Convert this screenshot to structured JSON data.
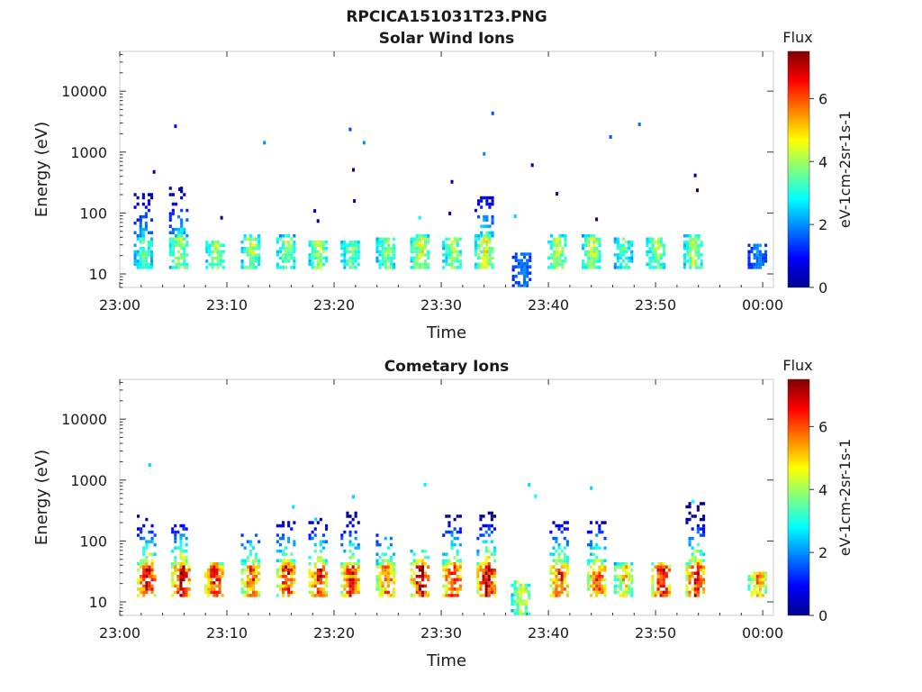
{
  "figure_title": "RPCICA151031T23.PNG",
  "chart_data": [
    {
      "type": "heatmap",
      "title": "Solar Wind Ions",
      "xlabel": "Time",
      "ylabel": "Energy (eV)",
      "x_ticks": [
        "23:00",
        "23:10",
        "23:20",
        "23:30",
        "23:40",
        "23:50",
        "00:00"
      ],
      "x_range_minutes": [
        0,
        61
      ],
      "y_scale": "log",
      "y_ticks": [
        "10",
        "100",
        "1000",
        "10000"
      ],
      "ylim": [
        6,
        45000
      ],
      "colorbar": {
        "title": "Flux",
        "label": "eV-1cm-2sr-1s-1",
        "ticks": [
          "0",
          "2",
          "4",
          "6"
        ],
        "range": [
          0,
          7.5
        ],
        "colormap": "jet"
      },
      "bursts": [
        {
          "t": 2.2,
          "emin": 12,
          "emax": 220,
          "peak": 3.5
        },
        {
          "t": 5.5,
          "emin": 12,
          "emax": 250,
          "peak": 4.2
        },
        {
          "t": 8.9,
          "emin": 12,
          "emax": 35,
          "peak": 4.0
        },
        {
          "t": 12.2,
          "emin": 12,
          "emax": 40,
          "peak": 4.2
        },
        {
          "t": 15.5,
          "emin": 12,
          "emax": 40,
          "peak": 4.0
        },
        {
          "t": 18.5,
          "emin": 12,
          "emax": 35,
          "peak": 4.3
        },
        {
          "t": 21.5,
          "emin": 12,
          "emax": 35,
          "peak": 3.8
        },
        {
          "t": 24.8,
          "emin": 12,
          "emax": 38,
          "peak": 4.0
        },
        {
          "t": 28.0,
          "emin": 12,
          "emax": 40,
          "peak": 4.5
        },
        {
          "t": 31.0,
          "emin": 12,
          "emax": 38,
          "peak": 4.0
        },
        {
          "t": 34.0,
          "emin": 12,
          "emax": 170,
          "peak": 4.6
        },
        {
          "t": 37.5,
          "emin": 6,
          "emax": 22,
          "peak": 2.0
        },
        {
          "t": 40.8,
          "emin": 12,
          "emax": 40,
          "peak": 4.3
        },
        {
          "t": 44.0,
          "emin": 12,
          "emax": 42,
          "peak": 4.3
        },
        {
          "t": 47.0,
          "emin": 12,
          "emax": 38,
          "peak": 3.5
        },
        {
          "t": 50.0,
          "emin": 12,
          "emax": 38,
          "peak": 4.0
        },
        {
          "t": 53.5,
          "emin": 12,
          "emax": 40,
          "peak": 4.3
        },
        {
          "t": 59.5,
          "emin": 12,
          "emax": 30,
          "peak": 2.0
        }
      ],
      "scatter_points": [
        {
          "t": 5.2,
          "e": 2700,
          "v": 1
        },
        {
          "t": 13.5,
          "e": 1450,
          "v": 2
        },
        {
          "t": 21.5,
          "e": 2400,
          "v": 1.5
        },
        {
          "t": 22.8,
          "e": 1450,
          "v": 2
        },
        {
          "t": 21.8,
          "e": 520,
          "v": 0.3
        },
        {
          "t": 21.9,
          "e": 160,
          "v": 0.3
        },
        {
          "t": 3.2,
          "e": 480,
          "v": 0.3
        },
        {
          "t": 5.6,
          "e": 250,
          "v": 0.3
        },
        {
          "t": 9.5,
          "e": 85,
          "v": 0.3
        },
        {
          "t": 18.2,
          "e": 110,
          "v": 0.3
        },
        {
          "t": 18.5,
          "e": 75,
          "v": 0.3
        },
        {
          "t": 28.0,
          "e": 85,
          "v": 2.8
        },
        {
          "t": 31.0,
          "e": 330,
          "v": 0.3
        },
        {
          "t": 30.8,
          "e": 100,
          "v": 0.3
        },
        {
          "t": 34.8,
          "e": 4400,
          "v": 1.5
        },
        {
          "t": 34.0,
          "e": 950,
          "v": 2.0
        },
        {
          "t": 38.5,
          "e": 620,
          "v": 0.3
        },
        {
          "t": 36.9,
          "e": 90,
          "v": 2.5
        },
        {
          "t": 40.8,
          "e": 210,
          "v": 0.3
        },
        {
          "t": 44.5,
          "e": 80,
          "v": 0.3
        },
        {
          "t": 45.8,
          "e": 1800,
          "v": 1.6
        },
        {
          "t": 48.5,
          "e": 2900,
          "v": 1.8
        },
        {
          "t": 53.7,
          "e": 420,
          "v": 0.3
        },
        {
          "t": 53.9,
          "e": 240,
          "v": 0.3
        }
      ]
    },
    {
      "type": "heatmap",
      "title": "Cometary Ions",
      "xlabel": "Time",
      "ylabel": "Energy (eV)",
      "x_ticks": [
        "23:00",
        "23:10",
        "23:20",
        "23:30",
        "23:40",
        "23:50",
        "00:00"
      ],
      "x_range_minutes": [
        0,
        61
      ],
      "y_scale": "log",
      "y_ticks": [
        "10",
        "100",
        "1000",
        "10000"
      ],
      "ylim": [
        6,
        45000
      ],
      "colorbar": {
        "title": "Flux",
        "label": "eV-1cm-2sr-1s-1",
        "ticks": [
          "0",
          "2",
          "4",
          "6"
        ],
        "range": [
          0,
          7.5
        ],
        "colormap": "jet"
      },
      "bursts": [
        {
          "t": 2.5,
          "emin": 12,
          "emax": 250,
          "peak": 7.0
        },
        {
          "t": 5.7,
          "emin": 12,
          "emax": 180,
          "peak": 6.8
        },
        {
          "t": 8.8,
          "emin": 12,
          "emax": 40,
          "peak": 6.6
        },
        {
          "t": 12.2,
          "emin": 12,
          "emax": 120,
          "peak": 6.0
        },
        {
          "t": 15.5,
          "emin": 12,
          "emax": 200,
          "peak": 6.6
        },
        {
          "t": 18.5,
          "emin": 12,
          "emax": 230,
          "peak": 6.6
        },
        {
          "t": 21.5,
          "emin": 12,
          "emax": 300,
          "peak": 6.5
        },
        {
          "t": 24.8,
          "emin": 12,
          "emax": 120,
          "peak": 6.0
        },
        {
          "t": 28.0,
          "emin": 12,
          "emax": 70,
          "peak": 7.1
        },
        {
          "t": 31.0,
          "emin": 12,
          "emax": 250,
          "peak": 6.8
        },
        {
          "t": 34.2,
          "emin": 12,
          "emax": 300,
          "peak": 7.2
        },
        {
          "t": 37.4,
          "emin": 6,
          "emax": 22,
          "peak": 4.5
        },
        {
          "t": 41.0,
          "emin": 12,
          "emax": 200,
          "peak": 6.3
        },
        {
          "t": 44.5,
          "emin": 12,
          "emax": 200,
          "peak": 6.2
        },
        {
          "t": 47.0,
          "emin": 12,
          "emax": 40,
          "peak": 5.0
        },
        {
          "t": 50.5,
          "emin": 12,
          "emax": 40,
          "peak": 6.8
        },
        {
          "t": 53.7,
          "emin": 12,
          "emax": 400,
          "peak": 7.0
        },
        {
          "t": 59.5,
          "emin": 12,
          "emax": 30,
          "peak": 5.5
        }
      ],
      "scatter_points": [
        {
          "t": 2.8,
          "e": 1800,
          "v": 2.5
        },
        {
          "t": 28.5,
          "e": 850,
          "v": 2.8
        },
        {
          "t": 38.2,
          "e": 850,
          "v": 2.6
        },
        {
          "t": 38.8,
          "e": 550,
          "v": 2.8
        },
        {
          "t": 44.0,
          "e": 750,
          "v": 2.5
        },
        {
          "t": 53.5,
          "e": 450,
          "v": 2.8
        },
        {
          "t": 21.8,
          "e": 540,
          "v": 2.5
        },
        {
          "t": 16.2,
          "e": 370,
          "v": 2.6
        },
        {
          "t": 18.3,
          "e": 230,
          "v": 2.6
        }
      ]
    }
  ]
}
